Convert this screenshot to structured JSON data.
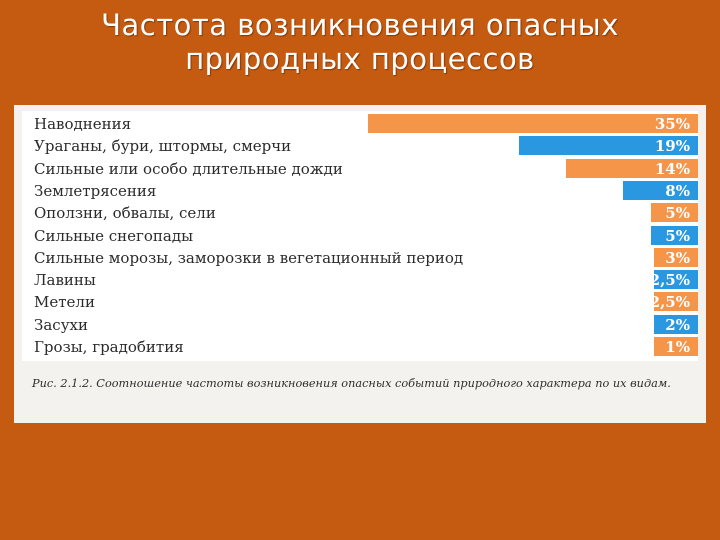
{
  "slide": {
    "title_line1": "Частота возникновения опасных",
    "title_line2": "природных процессов"
  },
  "colors": {
    "background": "#c55a11",
    "orange": "#f4954a",
    "blue": "#2a98e0"
  },
  "chart_data": {
    "type": "bar",
    "orientation": "horizontal",
    "categories": [
      "Наводнения",
      "Ураганы, бури, штормы, смерчи",
      "Сильные или особо длительные дожди",
      "Землетрясения",
      "Оползни, обвалы, сели",
      "Сильные снегопады",
      "Сильные морозы, заморозки в вегетационный период",
      "Лавины",
      "Метели",
      "Засухи",
      "Грозы, градобития"
    ],
    "values": [
      35,
      19,
      14,
      8,
      5,
      5,
      3,
      2.5,
      2.5,
      2,
      1
    ],
    "value_labels": [
      "35%",
      "19%",
      "14%",
      "8%",
      "5%",
      "5%",
      "3%",
      "2,5%",
      "2,5%",
      "2%",
      "1%"
    ],
    "bar_colors": [
      "orange",
      "blue",
      "orange",
      "blue",
      "orange",
      "blue",
      "orange",
      "blue",
      "orange",
      "blue",
      "orange"
    ],
    "caption": "Рис. 2.1.2. Соотношение частоты возникновения опасных событий природного характера по их видам.",
    "grid": false,
    "legend": "none"
  }
}
